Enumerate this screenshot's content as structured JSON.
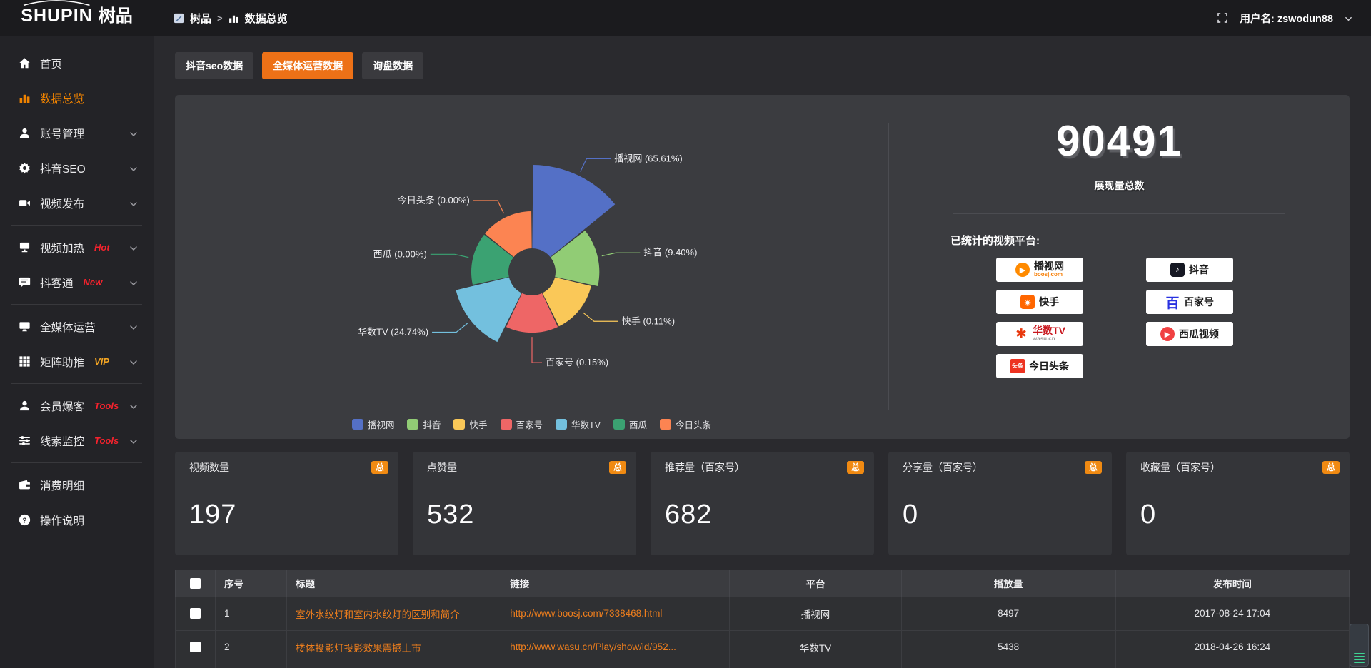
{
  "logo": {
    "en": "SHUPIN",
    "cn": "树品"
  },
  "breadcrumb": {
    "root": "树品",
    "sep": ">",
    "current": "数据总览"
  },
  "user": {
    "label": "用户名: zswodun88"
  },
  "sidebar": {
    "items": [
      {
        "label": "首页",
        "icon": "home",
        "active": false,
        "chevron": false,
        "tag": "",
        "divider_after": false
      },
      {
        "label": "数据总览",
        "icon": "chart",
        "active": true,
        "chevron": false,
        "tag": "",
        "divider_after": false
      },
      {
        "label": "账号管理",
        "icon": "user",
        "active": false,
        "chevron": true,
        "tag": "",
        "divider_after": false
      },
      {
        "label": "抖音SEO",
        "icon": "gear",
        "active": false,
        "chevron": true,
        "tag": "",
        "divider_after": false
      },
      {
        "label": "视频发布",
        "icon": "video",
        "active": false,
        "chevron": true,
        "tag": "",
        "divider_after": true
      },
      {
        "label": "视频加热",
        "icon": "heat",
        "active": false,
        "chevron": true,
        "tag": "Hot",
        "tag_color": "#f5222d",
        "divider_after": false
      },
      {
        "label": "抖客通",
        "icon": "chat",
        "active": false,
        "chevron": true,
        "tag": "New",
        "tag_color": "#f5222d",
        "divider_after": true
      },
      {
        "label": "全媒体运营",
        "icon": "monitor",
        "active": false,
        "chevron": true,
        "tag": "",
        "divider_after": false
      },
      {
        "label": "矩阵助推",
        "icon": "grid",
        "active": false,
        "chevron": true,
        "tag": "VIP",
        "tag_color": "#f5a623",
        "divider_after": true
      },
      {
        "label": "会员爆客",
        "icon": "user",
        "active": false,
        "chevron": true,
        "tag": "Tools",
        "tag_color": "#f5222d",
        "divider_after": false
      },
      {
        "label": "线索监控",
        "icon": "sliders",
        "active": false,
        "chevron": true,
        "tag": "Tools",
        "tag_color": "#f5222d",
        "divider_after": true
      },
      {
        "label": "消费明细",
        "icon": "wallet",
        "active": false,
        "chevron": false,
        "tag": "",
        "divider_after": false
      },
      {
        "label": "操作说明",
        "icon": "question",
        "active": false,
        "chevron": false,
        "tag": "",
        "divider_after": false
      }
    ]
  },
  "tabs": [
    {
      "label": "抖音seo数据",
      "active": false
    },
    {
      "label": "全媒体运营数据",
      "active": true
    },
    {
      "label": "询盘数据",
      "active": false
    }
  ],
  "chart_data": {
    "type": "pie",
    "variant": "nightingale-rose",
    "categories": [
      "播视网",
      "抖音",
      "快手",
      "百家号",
      "华数TV",
      "西瓜",
      "今日头条"
    ],
    "values": [
      65.61,
      9.4,
      0.11,
      0.15,
      24.74,
      0.0,
      0.0
    ],
    "unit": "%",
    "labels": [
      "播视网 (65.61%)",
      "抖音 (9.40%)",
      "快手 (0.11%)",
      "百家号 (0.15%)",
      "华数TV (24.74%)",
      "西瓜 (0.00%)",
      "今日头条 (0.00%)"
    ],
    "colors": [
      "#5470c6",
      "#91cc75",
      "#fac858",
      "#ee6666",
      "#73c0de",
      "#3ba272",
      "#fc8452"
    ],
    "legend": [
      "播视网",
      "抖音",
      "快手",
      "百家号",
      "华数TV",
      "西瓜",
      "今日头条"
    ],
    "legend_position": "bottom"
  },
  "summary": {
    "total_value": "90491",
    "total_label": "展现量总数"
  },
  "platforms": {
    "label": "已统计的视频平台:",
    "left": [
      {
        "name": "播视网",
        "sub": "boosj.com",
        "sub_color": "#f77c00",
        "logo": "boosj"
      },
      {
        "name": "快手",
        "sub": "",
        "logo": "kuaishou"
      },
      {
        "name": "华数TV",
        "sub": "wasu.cn",
        "sub_color": "#999999",
        "logo": "wasu",
        "name_color": "#c8161d"
      },
      {
        "name": "今日头条",
        "sub": "",
        "logo": "toutiao"
      }
    ],
    "right": [
      {
        "name": "抖音",
        "sub": "",
        "logo": "douyin"
      },
      {
        "name": "百家号",
        "sub": "",
        "logo": "baijiahao"
      },
      {
        "name": "西瓜视频",
        "sub": "",
        "logo": "xigua"
      }
    ]
  },
  "stat_cards": [
    {
      "title": "视频数量",
      "badge": "总",
      "value": "197"
    },
    {
      "title": "点赞量",
      "badge": "总",
      "value": "532"
    },
    {
      "title": "推荐量（百家号）",
      "badge": "总",
      "value": "682"
    },
    {
      "title": "分享量（百家号）",
      "badge": "总",
      "value": "0"
    },
    {
      "title": "收藏量（百家号）",
      "badge": "总",
      "value": "0"
    }
  ],
  "table": {
    "columns": [
      "序号",
      "标题",
      "链接",
      "平台",
      "播放量",
      "发布时间"
    ],
    "rows": [
      {
        "no": "1",
        "title": "室外水纹灯和室内水纹灯的区别和简介",
        "link": "http://www.boosj.com/7338468.html",
        "platform": "播视网",
        "plays": "8497",
        "time": "2017-08-24 17:04"
      },
      {
        "no": "2",
        "title": "楼体投影灯投影效果震撼上市",
        "link": "http://www.wasu.cn/Play/show/id/952...",
        "platform": "华数TV",
        "plays": "5438",
        "time": "2018-04-26 16:24"
      }
    ]
  },
  "colors": {
    "accent_orange": "#ed7117",
    "badge_orange": "#f08a12",
    "link_orange": "#ee7e1d",
    "sidebar_active": "#f08300",
    "tag_red": "#f5222d",
    "tag_vip": "#f5a623",
    "panel_bg": "#3b3c40"
  }
}
